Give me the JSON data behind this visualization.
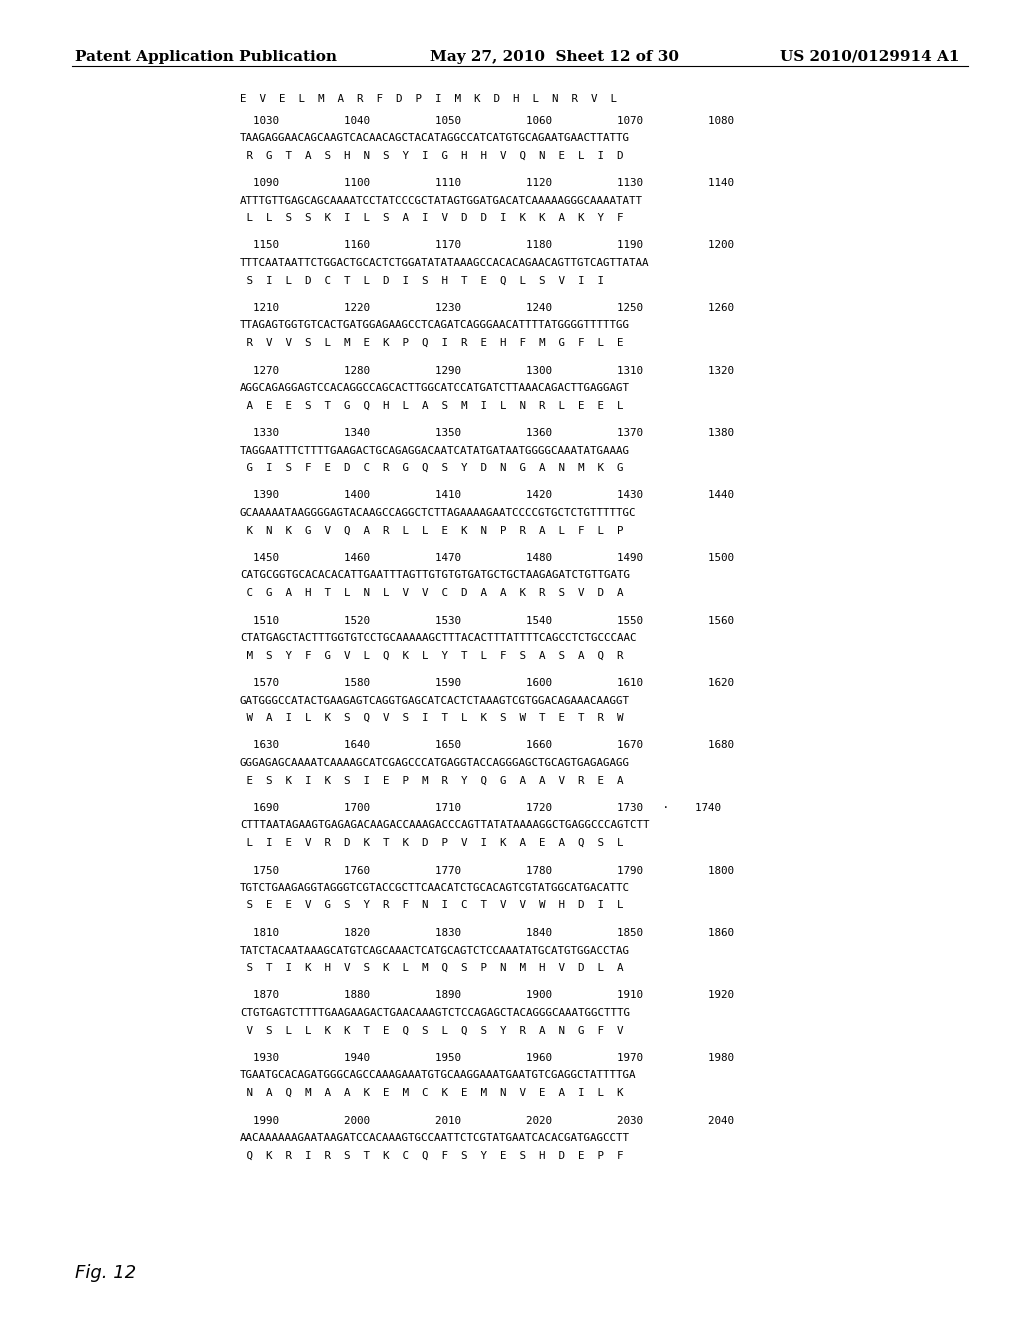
{
  "header_left": "Patent Application Publication",
  "header_mid": "May 27, 2010  Sheet 12 of 30",
  "header_right": "US 2010/0129914 A1",
  "figure_label": "Fig. 12",
  "background_color": "#ffffff",
  "text_color": "#000000",
  "blocks": [
    {
      "has_top_aa": true,
      "top_aa": "E  V  E  L  M  A  R  F  D  P  I  M  K  D  H  L  N  R  V  L",
      "numbers": "  1030          1040          1050          1060          1070          1080",
      "dna": "TAAGAGGAACAGCAAGTCACAACAGCTACATAGGCCATCATGTGCAGAATGAACTTATTG",
      "aa": " R  G  T  A  S  H  N  S  Y  I  G  H  H  V  Q  N  E  L  I  D"
    },
    {
      "has_top_aa": false,
      "numbers": "  1090          1100          1110          1120          1130          1140",
      "dna": "ATTTGTTGAGCAGCAAAATCCTATCCCGCTATAGTGGATGACATCAAAAAGGGCAAAATATT",
      "aa": " L  L  S  S  K  I  L  S  A  I  V  D  D  I  K  K  A  K  Y  F"
    },
    {
      "has_top_aa": false,
      "numbers": "  1150          1160          1170          1180          1190          1200",
      "dna": "TTTCAATAATTCTGGACTGCACTCTGGATATATAAAGCCACACAGAACAGTTGTCAGTTATAA",
      "aa": " S  I  L  D  C  T  L  D  I  S  H  T  E  Q  L  S  V  I  I"
    },
    {
      "has_top_aa": false,
      "numbers": "  1210          1220          1230          1240          1250          1260",
      "dna": "TTAGAGTGGTGTCACTGATGGAGAAGCCTCAGATCAGGGAACATTTTATGGGGTTTTTGG",
      "aa": " R  V  V  S  L  M  E  K  P  Q  I  R  E  H  F  M  G  F  L  E"
    },
    {
      "has_top_aa": false,
      "numbers": "  1270          1280          1290          1300          1310          1320",
      "dna": "AGGCAGAGGAGTCCACAGGCCAGCACTTGGCATCCATGATCTTAAACAGACTTGAGGAGT",
      "aa": " A  E  E  S  T  G  Q  H  L  A  S  M  I  L  N  R  L  E  E  L"
    },
    {
      "has_top_aa": false,
      "numbers": "  1330          1340          1350          1360          1370          1380",
      "dna": "TAGGAATTTCTTTTGAAGACTGCAGAGGACAATCATATGATAATGGGGCAAATATGAAAG",
      "aa": " G  I  S  F  E  D  C  R  G  Q  S  Y  D  N  G  A  N  M  K  G"
    },
    {
      "has_top_aa": false,
      "numbers": "  1390          1400          1410          1420          1430          1440",
      "dna": "GCAAAAATAAGGGGAGTACAAGCCAGGCTCTTAGAAAAGAATCCCCGTGCTCTGTTTTTGC",
      "aa": " K  N  K  G  V  Q  A  R  L  L  E  K  N  P  R  A  L  F  L  P"
    },
    {
      "has_top_aa": false,
      "numbers": "  1450          1460          1470          1480          1490          1500",
      "dna": "CATGCGGTGCACACACATTGAATTTAGTTGTGTGTGATGCTGCTAAGAGATCTGTTGATG",
      "aa": " C  G  A  H  T  L  N  L  V  V  C  D  A  A  K  R  S  V  D  A"
    },
    {
      "has_top_aa": false,
      "numbers": "  1510          1520          1530          1540          1550          1560",
      "dna": "CTATGAGCTACTTTGGTGTCCTGCAAAAAGCTTTACACTTTATTTTCAGCCTCTGCCCAAC",
      "aa": " M  S  Y  F  G  V  L  Q  K  L  Y  T  L  F  S  A  S  A  Q  R"
    },
    {
      "has_top_aa": false,
      "numbers": "  1570          1580          1590          1600          1610          1620",
      "dna": "GATGGGCCATACTGAAGAGTCAGGTGAGCATCACTCTAAAGTCGTGGACAGAAACAAGGT",
      "aa": " W  A  I  L  K  S  Q  V  S  I  T  L  K  S  W  T  E  T  R  W"
    },
    {
      "has_top_aa": false,
      "numbers": "  1630          1640          1650          1660          1670          1680",
      "dna": "GGGAGAGCAAAATCAAAAGCATCGAGCCCATGAGGTACCAGGGAGCTGCAGTGAGAGAGG",
      "aa": " E  S  K  I  K  S  I  E  P  M  R  Y  Q  G  A  A  V  R  E  A"
    },
    {
      "has_top_aa": false,
      "numbers": "  1690          1700          1710          1720          1730   ·    1740",
      "dna": "CTTTAATAGAAGTGAGAGACAAGACCAAAGACCCAGTTATATAAAAGGCTGAGGCCCAGTCTT",
      "aa": " L  I  E  V  R  D  K  T  K  D  P  V  I  K  A  E  A  Q  S  L"
    },
    {
      "has_top_aa": false,
      "numbers": "  1750          1760          1770          1780          1790          1800",
      "dna": "TGTCTGAAGAGGTAGGGTCGTACCGCTTCAACATCTGCACAGTCGTATGGCATGACATTC",
      "aa": " S  E  E  V  G  S  Y  R  F  N  I  C  T  V  V  W  H  D  I  L"
    },
    {
      "has_top_aa": false,
      "numbers": "  1810          1820          1830          1840          1850          1860",
      "dna": "TATCTACAATAAAGCATGTCAGCAAACTCATGCAGTCTCCAAATATGCATGTGGACCTAG",
      "aa": " S  T  I  K  H  V  S  K  L  M  Q  S  P  N  M  H  V  D  L  A"
    },
    {
      "has_top_aa": false,
      "numbers": "  1870          1880          1890          1900          1910          1920",
      "dna": "CTGTGAGTCTTTTGAAGAAGACTGAACAAAGTCTCCAGAGCTACAGGGCAAATGGCTTTG",
      "aa": " V  S  L  L  K  K  T  E  Q  S  L  Q  S  Y  R  A  N  G  F  V"
    },
    {
      "has_top_aa": false,
      "numbers": "  1930          1940          1950          1960          1970          1980",
      "dna": "TGAATGCACAGATGGGCAGCCAAAGAAATGTGCAAGGAAATGAATGTCGAGGCTATTTTGA",
      "aa": " N  A  Q  M  A  A  K  E  M  C  K  E  M  N  V  E  A  I  L  K"
    },
    {
      "has_top_aa": false,
      "numbers": "  1990          2000          2010          2020          2030          2040",
      "dna": "AACAAAAAAGAATAAGATCCACAAAGTGCCAATTCTCGTATGAATCACACGATGAGCCTT",
      "aa": " Q  K  R  I  R  S  T  K  C  Q  F  S  Y  E  S  H  D  E  P  F"
    }
  ],
  "header_fontsize": 11,
  "seq_fontsize": 7.8,
  "fig_label_fontsize": 13
}
